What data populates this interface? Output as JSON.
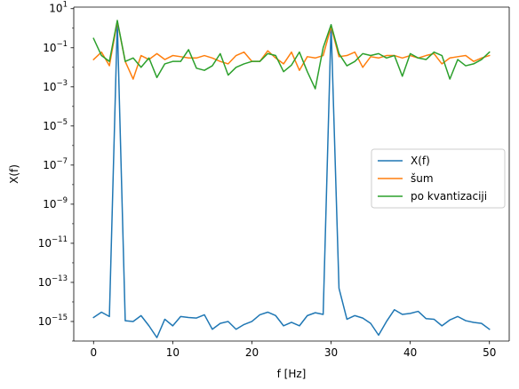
{
  "chart_data": {
    "type": "line",
    "xlabel": "f [Hz]",
    "ylabel": "X(f)",
    "yscale": "log",
    "xlim": [
      -2.5,
      52.5
    ],
    "ylim": [
      1e-16,
      12
    ],
    "x_ticks": [
      0,
      10,
      20,
      30,
      40,
      50
    ],
    "x_tick_labels": [
      "0",
      "10",
      "20",
      "30",
      "40",
      "50"
    ],
    "y_tick_exponents": [
      -15,
      -13,
      -11,
      -9,
      -7,
      -5,
      -3,
      -1,
      1
    ],
    "y_tick_labels": [
      "10",
      "10",
      "10",
      "10",
      "10",
      "10",
      "10",
      "10",
      "10"
    ],
    "y_tick_superscripts": [
      "−15",
      "−13",
      "−11",
      "−9",
      "−7",
      "−5",
      "−3",
      "−1",
      "1"
    ],
    "legend_position": "center-right",
    "grid": false,
    "x": [
      0,
      1,
      2,
      3,
      4,
      5,
      6,
      7,
      8,
      9,
      10,
      11,
      12,
      13,
      14,
      15,
      16,
      17,
      18,
      19,
      20,
      21,
      22,
      23,
      24,
      25,
      26,
      27,
      28,
      29,
      30,
      31,
      32,
      33,
      34,
      35,
      36,
      37,
      38,
      39,
      40,
      41,
      42,
      43,
      44,
      45,
      46,
      47,
      48,
      49,
      50
    ],
    "series": [
      {
        "name": "X(f)",
        "color": "#1f77b4",
        "values": [
          1.6e-15,
          3e-15,
          1.8e-15,
          2.0,
          1.1e-15,
          1e-15,
          2e-15,
          6e-16,
          1.5e-16,
          1.3e-15,
          6e-16,
          1.8e-15,
          1.6e-15,
          1.5e-15,
          2.2e-15,
          4e-16,
          8e-16,
          1e-15,
          4e-16,
          7e-16,
          1e-15,
          2.2e-15,
          3e-15,
          2e-15,
          6e-16,
          9e-16,
          6e-16,
          2e-15,
          2.8e-15,
          2.3e-15,
          1.5,
          5e-14,
          1.3e-15,
          2e-15,
          1.5e-15,
          8e-16,
          2e-16,
          1e-15,
          4e-15,
          2.3e-15,
          2.6e-15,
          3.3e-15,
          1.4e-15,
          1.3e-15,
          6e-16,
          1.2e-15,
          1.8e-15,
          1.1e-15,
          9e-16,
          8e-16,
          4e-16
        ]
      },
      {
        "name": "šum",
        "color": "#ff7f0e",
        "values": [
          0.025,
          0.06,
          0.012,
          2.2,
          0.02,
          0.0025,
          0.04,
          0.025,
          0.05,
          0.025,
          0.04,
          0.035,
          0.03,
          0.03,
          0.04,
          0.03,
          0.02,
          0.015,
          0.04,
          0.06,
          0.02,
          0.02,
          0.07,
          0.03,
          0.015,
          0.06,
          0.007,
          0.035,
          0.03,
          0.04,
          1.2,
          0.035,
          0.04,
          0.06,
          0.01,
          0.035,
          0.03,
          0.04,
          0.04,
          0.03,
          0.04,
          0.03,
          0.04,
          0.05,
          0.015,
          0.03,
          0.035,
          0.04,
          0.02,
          0.03,
          0.04
        ]
      },
      {
        "name": "po kvantizaciji",
        "color": "#2ca02c",
        "values": [
          0.3,
          0.04,
          0.02,
          2.5,
          0.02,
          0.03,
          0.01,
          0.03,
          0.003,
          0.015,
          0.02,
          0.02,
          0.08,
          0.009,
          0.007,
          0.012,
          0.05,
          0.004,
          0.01,
          0.015,
          0.02,
          0.02,
          0.05,
          0.04,
          0.006,
          0.013,
          0.06,
          0.006,
          0.0008,
          0.1,
          1.5,
          0.05,
          0.012,
          0.02,
          0.05,
          0.04,
          0.05,
          0.03,
          0.04,
          0.0035,
          0.05,
          0.03,
          0.025,
          0.06,
          0.04,
          0.0025,
          0.025,
          0.012,
          0.015,
          0.025,
          0.06
        ]
      }
    ]
  }
}
